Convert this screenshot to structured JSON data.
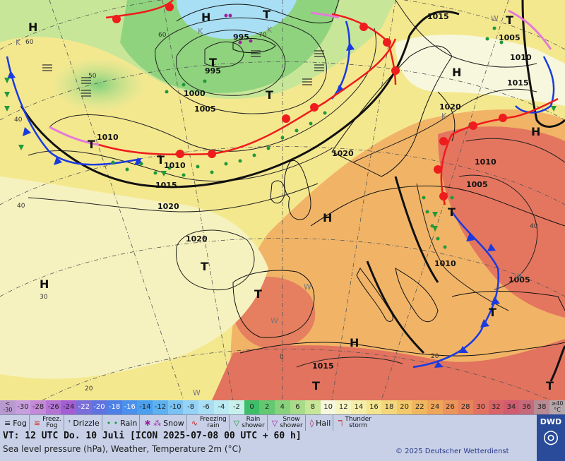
{
  "map": {
    "pressure_labels": [
      {
        "text": "995",
        "at": "n-atlantic-low"
      },
      {
        "text": "995",
        "at": "iceland"
      },
      {
        "text": "1000",
        "at": "iceland-south"
      },
      {
        "text": "1005",
        "at": "n-atlantic"
      },
      {
        "text": "1010",
        "at": "west-atlantic"
      },
      {
        "text": "1010",
        "at": "mid-atlantic"
      },
      {
        "text": "1015",
        "at": "mid-atlantic-south"
      },
      {
        "text": "1020",
        "at": "mid-atlantic-south2"
      },
      {
        "text": "1020",
        "at": "north-sea"
      },
      {
        "text": "1020",
        "at": "azores"
      },
      {
        "text": "1015",
        "at": "norway"
      },
      {
        "text": "1005",
        "at": "finland"
      },
      {
        "text": "1010",
        "at": "finland2"
      },
      {
        "text": "1015",
        "at": "finland3"
      },
      {
        "text": "1020",
        "at": "baltic"
      },
      {
        "text": "1010",
        "at": "russia"
      },
      {
        "text": "1005",
        "at": "ukraine"
      },
      {
        "text": "1010",
        "at": "balkans"
      },
      {
        "text": "1005",
        "at": "turkey"
      },
      {
        "text": "1015",
        "at": "north-africa"
      }
    ],
    "pressure_centers": [
      {
        "text": "H",
        "at": "greenland-nw"
      },
      {
        "text": "H",
        "at": "greenland"
      },
      {
        "text": "T",
        "at": "greenland-east"
      },
      {
        "text": "T",
        "at": "iceland-low"
      },
      {
        "text": "T",
        "at": "norwegian-sea"
      },
      {
        "text": "T",
        "at": "west-atlantic"
      },
      {
        "text": "T",
        "at": "mid-atlantic"
      },
      {
        "text": "H",
        "at": "scandinavia"
      },
      {
        "text": "T",
        "at": "far-ne"
      },
      {
        "text": "H",
        "at": "russia"
      },
      {
        "text": "H",
        "at": "north-sea"
      },
      {
        "text": "T",
        "at": "azores"
      },
      {
        "text": "H",
        "at": "atlantic-sw"
      },
      {
        "text": "T",
        "at": "iberia"
      },
      {
        "text": "T",
        "at": "central-europe"
      },
      {
        "text": "T",
        "at": "greece"
      },
      {
        "text": "H",
        "at": "mediterranean"
      },
      {
        "text": "T",
        "at": "north-africa"
      },
      {
        "text": "T",
        "at": "middle-east"
      }
    ],
    "marker_labels": [
      {
        "text": "K"
      },
      {
        "text": "K"
      },
      {
        "text": "K"
      },
      {
        "text": "K"
      },
      {
        "text": "W"
      },
      {
        "text": "W"
      },
      {
        "text": "W"
      },
      {
        "text": "W"
      },
      {
        "text": "W"
      }
    ],
    "lat_labels": [
      "60",
      "50",
      "40",
      "40",
      "30",
      "20",
      "0",
      "20",
      "70",
      "60",
      "40"
    ]
  },
  "legend": {
    "scale": [
      {
        "label": "<\n-30",
        "color": "#b89ad0"
      },
      {
        "label": "-30",
        "color": "#c79fdc"
      },
      {
        "label": "-28",
        "color": "#c48ad8"
      },
      {
        "label": "-26",
        "color": "#b474d4"
      },
      {
        "label": "-24",
        "color": "#a45ed4"
      },
      {
        "label": "-22",
        "color": "#7a6fd8"
      },
      {
        "label": "-20",
        "color": "#5f72e0"
      },
      {
        "label": "-18",
        "color": "#4c80e6"
      },
      {
        "label": "-16",
        "color": "#4b90ec"
      },
      {
        "label": "-14",
        "color": "#4aa0ef"
      },
      {
        "label": "-12",
        "color": "#5db1f1"
      },
      {
        "label": "-10",
        "color": "#79c2f3"
      },
      {
        "label": "-8",
        "color": "#95d2f5"
      },
      {
        "label": "-6",
        "color": "#a8dff4"
      },
      {
        "label": "-4",
        "color": "#bbeaf2"
      },
      {
        "label": "-2",
        "color": "#c9f1ec"
      },
      {
        "label": "0",
        "color": "#3dbe69"
      },
      {
        "label": "2",
        "color": "#62c871"
      },
      {
        "label": "4",
        "color": "#88d27c"
      },
      {
        "label": "6",
        "color": "#a8dc8a"
      },
      {
        "label": "8",
        "color": "#c8e698"
      },
      {
        "label": "10",
        "color": "#f6f7dc"
      },
      {
        "label": "12",
        "color": "#f6f4c0"
      },
      {
        "label": "14",
        "color": "#f5efaa"
      },
      {
        "label": "16",
        "color": "#f4e58f"
      },
      {
        "label": "18",
        "color": "#f3d77a"
      },
      {
        "label": "20",
        "color": "#f2c86a"
      },
      {
        "label": "22",
        "color": "#f1b75f"
      },
      {
        "label": "24",
        "color": "#efa65a"
      },
      {
        "label": "26",
        "color": "#ec955b"
      },
      {
        "label": "28",
        "color": "#e8845d"
      },
      {
        "label": "30",
        "color": "#e27362"
      },
      {
        "label": "32",
        "color": "#d96468"
      },
      {
        "label": "34",
        "color": "#cf5c6f"
      },
      {
        "label": "36",
        "color": "#c46a7a"
      },
      {
        "label": "38",
        "color": "#b88a93"
      }
    ],
    "scale_unit": "≥40\n°C",
    "symbols": [
      {
        "label": "Fog",
        "icon": "fog-icon"
      },
      {
        "label": "Freez.\nFog",
        "icon": "freezing-fog-icon"
      },
      {
        "label": "Drizzle",
        "icon": "drizzle-icon"
      },
      {
        "label": "Rain",
        "icon": "rain-icon"
      },
      {
        "label": "Snow",
        "icon": "snow-icon"
      },
      {
        "label": "Freezing\nrain",
        "icon": "freezing-rain-icon"
      },
      {
        "label": "Rain\nshower",
        "icon": "rain-shower-icon"
      },
      {
        "label": "Snow\nshower",
        "icon": "snow-shower-icon"
      },
      {
        "label": "Hail",
        "icon": "hail-icon"
      },
      {
        "label": "Thunder\nstorm",
        "icon": "thunderstorm-icon"
      }
    ],
    "valid_time": "VT: 12 UTC Do.  10 Juli [ICON 2025-07-08  00 UTC + 60 h]",
    "description": "Sea level pressure (hPa), Weather, Temperature 2m (°C)",
    "copyright": "© 2025 Deutscher Wetterdienst",
    "logo_text": "DWD"
  }
}
